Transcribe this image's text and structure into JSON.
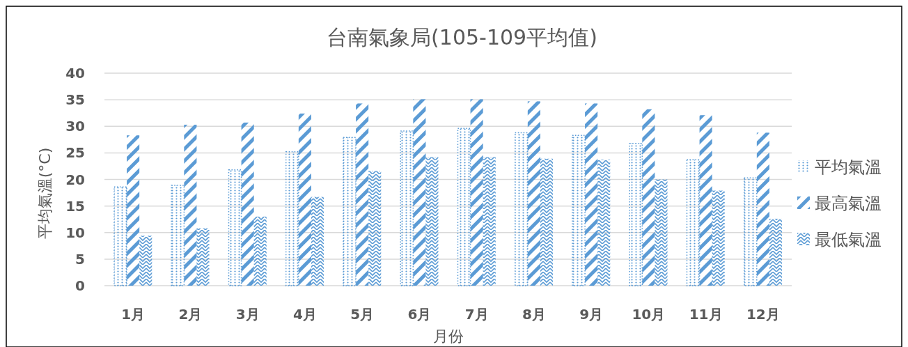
{
  "chart_data": {
    "type": "bar",
    "title": "台南氣象局(105-109平均值)",
    "xlabel": "月份",
    "ylabel": "平均氣溫(°C)",
    "categories": [
      "1月",
      "2月",
      "3月",
      "4月",
      "5月",
      "6月",
      "7月",
      "8月",
      "9月",
      "10月",
      "11月",
      "12月"
    ],
    "series": [
      {
        "name": "平均氣溫",
        "color": "#5b9bd5",
        "values": [
          18.6,
          18.9,
          21.8,
          25.2,
          27.9,
          29.1,
          29.6,
          28.8,
          28.3,
          26.8,
          23.7,
          20.3
        ]
      },
      {
        "name": "最高氣溫",
        "color": "#5b9bd5",
        "values": [
          28.3,
          30.3,
          30.7,
          32.4,
          34.3,
          35.1,
          35.1,
          34.7,
          34.3,
          33.2,
          32.1,
          28.8
        ]
      },
      {
        "name": "最低氣溫",
        "color": "#5b9bd5",
        "values": [
          9.4,
          10.8,
          13.0,
          16.7,
          21.6,
          24.2,
          24.2,
          23.9,
          23.7,
          20.0,
          17.9,
          12.6
        ]
      }
    ],
    "ylim": [
      0,
      40
    ],
    "yticks": [
      0,
      5,
      10,
      15,
      20,
      25,
      30,
      35,
      40
    ],
    "grid": "y",
    "legend": "right"
  }
}
